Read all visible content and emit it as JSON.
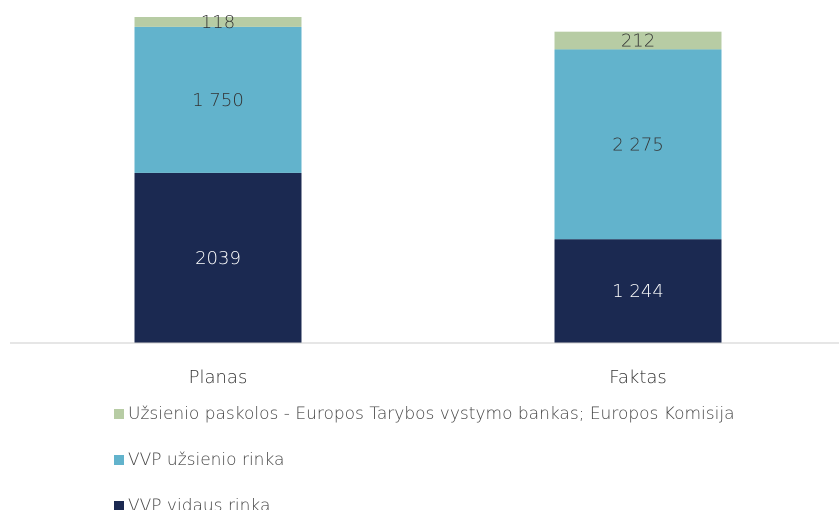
{
  "chart_data": {
    "type": "bar",
    "stacked": true,
    "categories": [
      "Planas",
      "Faktas"
    ],
    "series": [
      {
        "name": "VVP vidaus rinka",
        "color": "#1b2951",
        "values": [
          2039,
          1244
        ],
        "value_labels": [
          "2039",
          "1 244"
        ]
      },
      {
        "name": "VVP užsienio rinka",
        "color": "#62b3cc",
        "values": [
          1750,
          2275
        ],
        "value_labels": [
          "1 750",
          "2 275"
        ]
      },
      {
        "name": "Užsienio paskolos - Europos Tarybos vystymo bankas; Europos Komisija",
        "color": "#b7cca4",
        "values": [
          118,
          212
        ],
        "value_labels": [
          "118",
          "212"
        ]
      }
    ]
  }
}
